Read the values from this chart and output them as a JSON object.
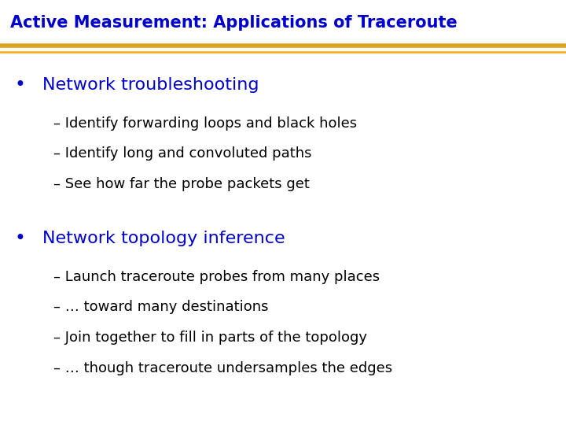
{
  "title": "Active Measurement: Applications of Traceroute",
  "title_color": "#0000CC",
  "bg_color": "#FFFFFF",
  "bullet_color": "#0000CC",
  "bullet1_text": "Network troubleshooting",
  "bullet2_text": "Network topology inference",
  "bullet_fontsize": 16,
  "sub_color": "#000000",
  "sub_fontsize": 13,
  "title_fontsize": 15,
  "sep_color": "#DAA520",
  "sep_color2": "#FFA500",
  "sub_items_1": [
    "– Identify forwarding loops and black holes",
    "– Identify long and convoluted paths",
    "– See how far the probe packets get"
  ],
  "sub_items_2": [
    "– Launch traceroute probes from many places",
    "– … toward many destinations",
    "– Join together to fill in parts of the topology",
    "– … though traceroute undersamples the edges"
  ]
}
